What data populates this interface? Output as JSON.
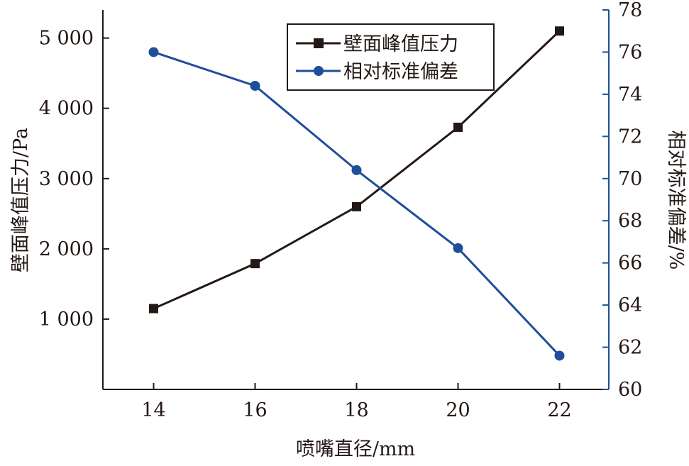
{
  "chart_data": {
    "type": "line",
    "xlabel": "喷嘴直径/mm",
    "ylabel_left": "壁面峰值压力/Pa",
    "ylabel_right": "相对标准偏差/%",
    "x": [
      14,
      16,
      18,
      20,
      22
    ],
    "x_ticks": [
      "14",
      "16",
      "18",
      "20",
      "22"
    ],
    "ylim_left": [
      0,
      5400
    ],
    "y_ticks_left": [
      {
        "value": 1000,
        "label": "1 000"
      },
      {
        "value": 2000,
        "label": "2 000"
      },
      {
        "value": 3000,
        "label": "3 000"
      },
      {
        "value": 4000,
        "label": "4 000"
      },
      {
        "value": 5000,
        "label": "5 000"
      }
    ],
    "ylim_right": [
      60,
      78
    ],
    "y_ticks_right": [
      "60",
      "62",
      "64",
      "66",
      "68",
      "70",
      "72",
      "74",
      "76",
      "78"
    ],
    "series": [
      {
        "name": "壁面峰值压力",
        "axis": "left",
        "marker": "square",
        "color": "#231815",
        "values": [
          1150,
          1790,
          2600,
          3730,
          5100
        ]
      },
      {
        "name": "相对标准偏差",
        "axis": "right",
        "marker": "circle",
        "color": "#1f4e9a",
        "values": [
          76.0,
          74.4,
          70.4,
          66.7,
          61.6
        ]
      }
    ],
    "legend_position": "top-center",
    "grid": false
  }
}
